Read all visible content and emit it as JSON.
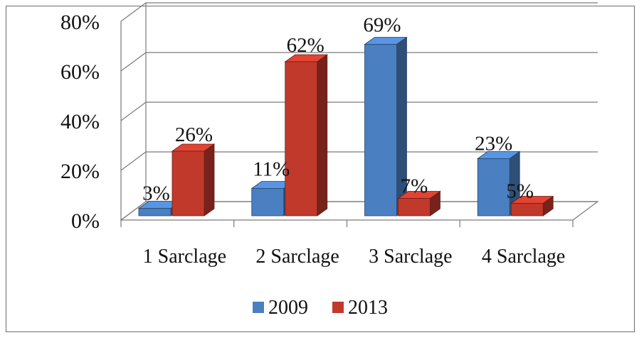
{
  "chart_data": {
    "type": "bar",
    "style": "3d-clustered-column",
    "categories": [
      "1 Sarclage",
      "2 Sarclage",
      "3 Sarclage",
      "4 Sarclage"
    ],
    "series": [
      {
        "name": "2009",
        "values": [
          3,
          11,
          69,
          23
        ],
        "labels": [
          "3%",
          "11%",
          "69%",
          "23%"
        ],
        "color": "#4a7fc1"
      },
      {
        "name": "2013",
        "values": [
          26,
          62,
          7,
          5
        ],
        "labels": [
          "26%",
          "62%",
          "7%",
          "5%"
        ],
        "color": "#c0392b"
      }
    ],
    "yticks": [
      "0%",
      "20%",
      "40%",
      "60%",
      "80%"
    ],
    "ylim": [
      0,
      80
    ],
    "grid": true,
    "legend_position": "bottom"
  }
}
